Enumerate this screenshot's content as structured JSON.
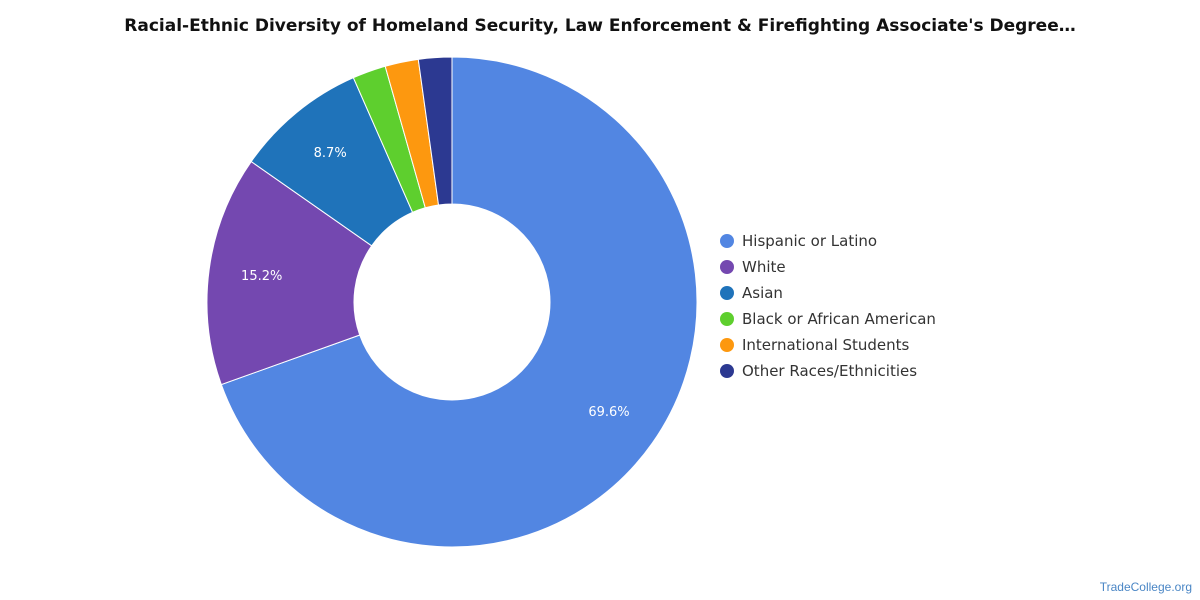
{
  "chart_data": {
    "type": "pie",
    "title": "Racial-Ethnic Diversity of Homeland Security, Law Enforcement & Firefighting Associate's Degree…",
    "categories": [
      "Hispanic or Latino",
      "White",
      "Asian",
      "Black or African American",
      "International Students",
      "Other Races/Ethnicities"
    ],
    "values": [
      69.6,
      15.2,
      8.7,
      2.2,
      2.2,
      2.2
    ],
    "data_labels": [
      "69.6%",
      "15.2%",
      "8.7%",
      "",
      "",
      ""
    ],
    "colors": [
      "#5286e2",
      "#7448b0",
      "#1f73ba",
      "#5ecf2e",
      "#fd980f",
      "#2c3991"
    ],
    "donut": true,
    "legend_position": "right"
  },
  "source": "TradeCollege.org"
}
